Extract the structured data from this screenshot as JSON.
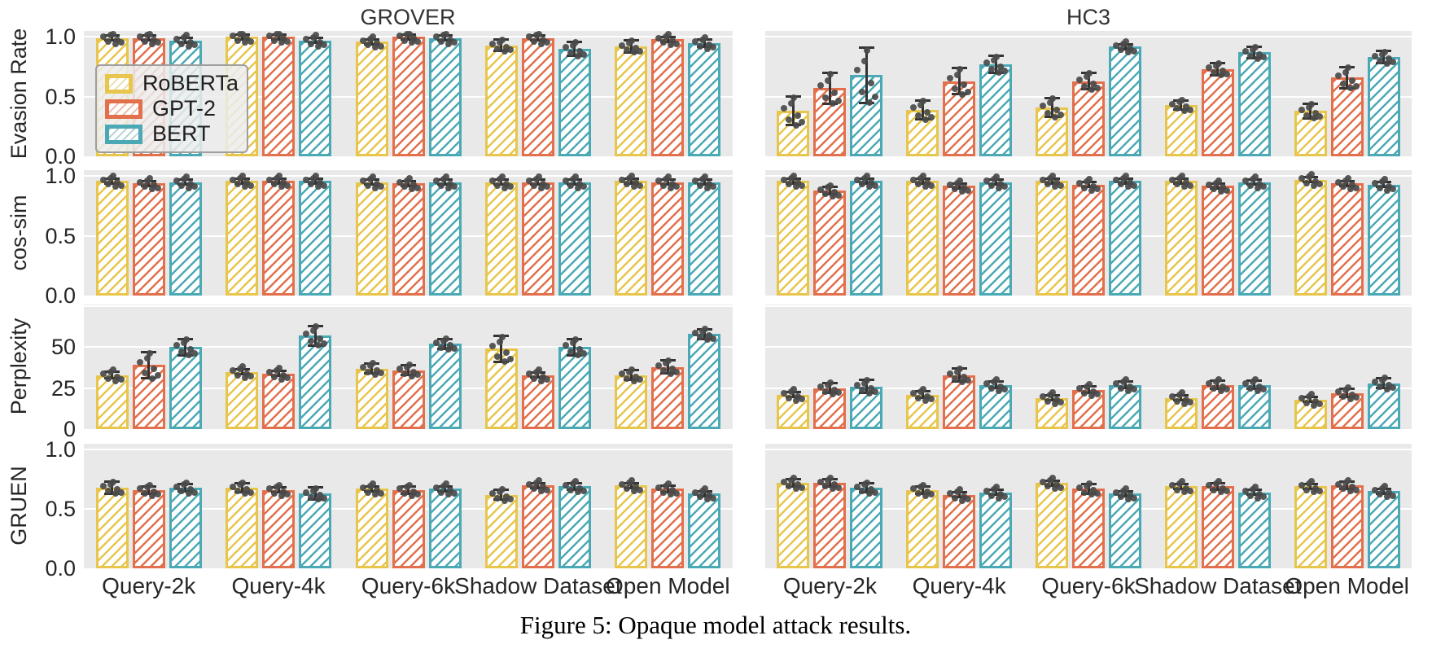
{
  "figure": {
    "caption": "Figure 5: Opaque model attack results.",
    "panels": [
      "GROVER",
      "HC3"
    ],
    "rows": [
      "Evasion Rate",
      "cos-sim",
      "Perplexity",
      "GRUEN"
    ],
    "categories": [
      "Query-2k",
      "Query-4k",
      "Query-6k",
      "Shadow Dataset",
      "Open Model"
    ],
    "legend": {
      "entries": [
        {
          "label": "RoBERTa",
          "color": "#e8c64d"
        },
        {
          "label": "GPT-2",
          "color": "#e2704c"
        },
        {
          "label": "BERT",
          "color": "#4ba9b5"
        }
      ]
    },
    "colors": {
      "plot_bg": "#e9e9e9",
      "grid": "#ffffff",
      "point": "#4a4a4a",
      "errbar": "#333333",
      "text": "#262626"
    }
  },
  "chart_data": [
    {
      "type": "bar",
      "panel": "GROVER",
      "metric": "Evasion Rate",
      "categories": [
        "Query-2k",
        "Query-4k",
        "Query-6k",
        "Shadow Dataset",
        "Open Model"
      ],
      "ylim": [
        0,
        1.05
      ],
      "grid_values": [
        0.5,
        1.0
      ],
      "yticks": {
        "values": [
          0.0,
          0.5,
          1.0
        ],
        "labels": [
          "0.0",
          "0.5",
          "1.0"
        ]
      },
      "series": [
        {
          "name": "RoBERTa",
          "values": [
            0.99,
            1.0,
            0.96,
            0.93,
            0.92
          ],
          "errors": [
            0.02,
            0.005,
            0.02,
            0.05,
            0.05
          ]
        },
        {
          "name": "GPT-2",
          "values": [
            0.99,
            1.0,
            1.0,
            0.99,
            0.98
          ],
          "errors": [
            0.01,
            0.005,
            0.005,
            0.01,
            0.015
          ]
        },
        {
          "name": "BERT",
          "values": [
            0.97,
            0.97,
            0.99,
            0.9,
            0.95
          ],
          "errors": [
            0.015,
            0.02,
            0.01,
            0.06,
            0.03
          ]
        }
      ]
    },
    {
      "type": "bar",
      "panel": "HC3",
      "metric": "Evasion Rate",
      "categories": [
        "Query-2k",
        "Query-4k",
        "Query-6k",
        "Shadow Dataset",
        "Open Model"
      ],
      "ylim": [
        0,
        1.05
      ],
      "grid_values": [
        0.5,
        1.0
      ],
      "yticks": {
        "values": [
          0.0,
          0.5,
          1.0
        ],
        "labels": [
          "0.0",
          "0.5",
          "1.0"
        ]
      },
      "series": [
        {
          "name": "RoBERTa",
          "values": [
            0.38,
            0.39,
            0.41,
            0.43,
            0.38
          ],
          "errors": [
            0.12,
            0.08,
            0.08,
            0.04,
            0.06
          ]
        },
        {
          "name": "GPT-2",
          "values": [
            0.57,
            0.63,
            0.63,
            0.73,
            0.66
          ],
          "errors": [
            0.13,
            0.11,
            0.07,
            0.05,
            0.09
          ]
        },
        {
          "name": "BERT",
          "values": [
            0.68,
            0.77,
            0.92,
            0.87,
            0.83
          ],
          "errors": [
            0.23,
            0.07,
            0.02,
            0.05,
            0.05
          ]
        }
      ]
    },
    {
      "type": "bar",
      "panel": "GROVER",
      "metric": "cos-sim",
      "categories": [
        "Query-2k",
        "Query-4k",
        "Query-6k",
        "Shadow Dataset",
        "Open Model"
      ],
      "ylim": [
        0,
        1.05
      ],
      "grid_values": [
        0.5,
        1.0
      ],
      "yticks": {
        "values": [
          0.0,
          0.5,
          1.0
        ],
        "labels": [
          "0.0",
          "0.5",
          "1.0"
        ]
      },
      "series": [
        {
          "name": "RoBERTa",
          "values": [
            0.96,
            0.96,
            0.95,
            0.95,
            0.96
          ],
          "errors": [
            0.01,
            0.005,
            0.02,
            0.02,
            0.01
          ]
        },
        {
          "name": "GPT-2",
          "values": [
            0.94,
            0.96,
            0.94,
            0.95,
            0.95
          ],
          "errors": [
            0.02,
            0.005,
            0.01,
            0.01,
            0.02
          ]
        },
        {
          "name": "BERT",
          "values": [
            0.95,
            0.96,
            0.95,
            0.95,
            0.95
          ],
          "errors": [
            0.01,
            0.005,
            0.005,
            0.01,
            0.01
          ]
        }
      ]
    },
    {
      "type": "bar",
      "panel": "HC3",
      "metric": "cos-sim",
      "categories": [
        "Query-2k",
        "Query-4k",
        "Query-6k",
        "Shadow Dataset",
        "Open Model"
      ],
      "ylim": [
        0,
        1.05
      ],
      "grid_values": [
        0.5,
        1.0
      ],
      "yticks": {
        "values": [
          0.0,
          0.5,
          1.0
        ],
        "labels": [
          "0.0",
          "0.5",
          "1.0"
        ]
      },
      "series": [
        {
          "name": "RoBERTa",
          "values": [
            0.96,
            0.96,
            0.96,
            0.96,
            0.97
          ],
          "errors": [
            0.01,
            0.005,
            0.005,
            0.005,
            0.005
          ]
        },
        {
          "name": "GPT-2",
          "values": [
            0.88,
            0.92,
            0.93,
            0.92,
            0.94
          ],
          "errors": [
            0.03,
            0.015,
            0.01,
            0.015,
            0.02
          ]
        },
        {
          "name": "BERT",
          "values": [
            0.96,
            0.95,
            0.96,
            0.95,
            0.93
          ],
          "errors": [
            0.005,
            0.01,
            0.01,
            0.01,
            0.01
          ]
        }
      ]
    },
    {
      "type": "bar",
      "panel": "GROVER",
      "metric": "Perplexity",
      "categories": [
        "Query-2k",
        "Query-4k",
        "Query-6k",
        "Shadow Dataset",
        "Open Model"
      ],
      "ylim": [
        0,
        76
      ],
      "grid_values": [
        25,
        50,
        75
      ],
      "yticks": {
        "values": [
          0,
          25,
          50
        ],
        "labels": [
          "0",
          "25",
          "50"
        ]
      },
      "series": [
        {
          "name": "RoBERTa",
          "values": [
            33,
            35,
            37,
            49,
            33
          ],
          "errors": [
            2,
            1.5,
            3,
            8,
            3
          ]
        },
        {
          "name": "GPT-2",
          "values": [
            39,
            34,
            36,
            33,
            38
          ],
          "errors": [
            8,
            1,
            3,
            1.5,
            4
          ]
        },
        {
          "name": "BERT",
          "values": [
            50,
            57,
            52,
            50,
            58
          ],
          "errors": [
            5,
            6,
            3,
            5,
            3
          ]
        }
      ]
    },
    {
      "type": "bar",
      "panel": "HC3",
      "metric": "Perplexity",
      "categories": [
        "Query-2k",
        "Query-4k",
        "Query-6k",
        "Shadow Dataset",
        "Open Model"
      ],
      "ylim": [
        0,
        76
      ],
      "grid_values": [
        25,
        50,
        75
      ],
      "yticks": {
        "values": [
          0,
          25,
          50
        ],
        "labels": [
          "0",
          "25",
          "50"
        ]
      },
      "series": [
        {
          "name": "RoBERTa",
          "values": [
            21,
            21,
            19,
            19,
            18
          ],
          "errors": [
            1.5,
            2,
            1,
            1,
            1
          ]
        },
        {
          "name": "GPT-2",
          "values": [
            25,
            33,
            24,
            27,
            22
          ],
          "errors": [
            3,
            4,
            2,
            2.5,
            2.5
          ]
        },
        {
          "name": "BERT",
          "values": [
            26,
            27,
            27,
            27,
            28
          ],
          "errors": [
            4,
            2,
            2,
            2.5,
            3
          ]
        }
      ]
    },
    {
      "type": "bar",
      "panel": "GROVER",
      "metric": "GRUEN",
      "categories": [
        "Query-2k",
        "Query-4k",
        "Query-6k",
        "Shadow Dataset",
        "Open Model"
      ],
      "ylim": [
        0,
        1.05
      ],
      "grid_values": [
        0.5,
        1.0
      ],
      "yticks": {
        "values": [
          0.0,
          0.5,
          1.0
        ],
        "labels": [
          "0.0",
          "0.5",
          "1.0"
        ]
      },
      "series": [
        {
          "name": "RoBERTa",
          "values": [
            0.68,
            0.68,
            0.67,
            0.62,
            0.7
          ],
          "errors": [
            0.05,
            0.04,
            0.02,
            0.04,
            0.01
          ]
        },
        {
          "name": "GPT-2",
          "values": [
            0.66,
            0.66,
            0.66,
            0.7,
            0.67
          ],
          "errors": [
            0.03,
            0.02,
            0.03,
            0.02,
            0.03
          ]
        },
        {
          "name": "BERT",
          "values": [
            0.68,
            0.63,
            0.67,
            0.69,
            0.63
          ],
          "errors": [
            0.03,
            0.05,
            0.02,
            0.03,
            0.02
          ]
        }
      ]
    },
    {
      "type": "bar",
      "panel": "HC3",
      "metric": "GRUEN",
      "categories": [
        "Query-2k",
        "Query-4k",
        "Query-6k",
        "Shadow Dataset",
        "Open Model"
      ],
      "ylim": [
        0,
        1.05
      ],
      "grid_values": [
        0.5,
        1.0
      ],
      "yticks": {
        "values": [
          0.0,
          0.5,
          1.0
        ],
        "labels": [
          "0.0",
          "0.5",
          "1.0"
        ]
      },
      "series": [
        {
          "name": "RoBERTa",
          "values": [
            0.72,
            0.66,
            0.72,
            0.69,
            0.69
          ],
          "errors": [
            0.03,
            0.03,
            0.02,
            0.01,
            0.02
          ]
        },
        {
          "name": "GPT-2",
          "values": [
            0.72,
            0.62,
            0.67,
            0.69,
            0.7
          ],
          "errors": [
            0.03,
            0.01,
            0.04,
            0.03,
            0.03
          ]
        },
        {
          "name": "BERT",
          "values": [
            0.68,
            0.64,
            0.63,
            0.64,
            0.65
          ],
          "errors": [
            0.04,
            0.01,
            0.02,
            0.02,
            0.02
          ]
        }
      ]
    }
  ],
  "scatter_offsets": [
    [
      -11,
      -0.2
    ],
    [
      -5,
      0.6
    ],
    [
      1,
      -0.9
    ],
    [
      6,
      0.3
    ],
    [
      11,
      0.8
    ],
    [
      -2,
      -0.5
    ],
    [
      4,
      1.0
    ]
  ]
}
